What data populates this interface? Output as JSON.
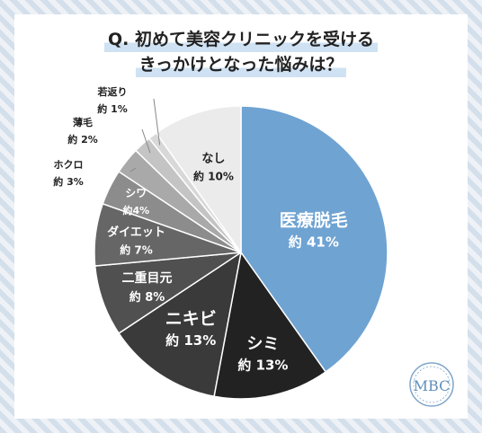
{
  "chart_data": {
    "type": "pie",
    "title": "Q. 初めて美容クリニックを受ける\nきっかけとなった悩みは？",
    "title_lines": [
      "Q. 初めて美容クリニックを受ける",
      "きっかけとなった悩みは？"
    ],
    "slices": [
      {
        "label": "医療脱毛",
        "value_label": "約 41%",
        "value": 41,
        "color": "#6fa3d2",
        "text_color": "#ffffff"
      },
      {
        "label": "シミ",
        "value_label": "約 13%",
        "value": 13,
        "color": "#222222",
        "text_color": "#ffffff"
      },
      {
        "label": "ニキビ",
        "value_label": "約 13%",
        "value": 13,
        "color": "#3a3a3a",
        "text_color": "#ffffff"
      },
      {
        "label": "二重目元",
        "value_label": "約 8%",
        "value": 8,
        "color": "#505050",
        "text_color": "#ffffff"
      },
      {
        "label": "ダイエット",
        "value_label": "約 7%",
        "value": 7,
        "color": "#666666",
        "text_color": "#ffffff"
      },
      {
        "label": "シワ",
        "value_label": "約4%",
        "value": 4,
        "color": "#8c8c8c",
        "text_color": "#ffffff"
      },
      {
        "label": "ホクロ",
        "value_label": "約 3%",
        "value": 3,
        "color": "#a9a9a9",
        "text_color": "#222222"
      },
      {
        "label": "薄毛",
        "value_label": "約 2%",
        "value": 2,
        "color": "#c4c4c4",
        "text_color": "#222222"
      },
      {
        "label": "若返り",
        "value_label": "約 1%",
        "value": 1,
        "color": "#d8d8d8",
        "text_color": "#222222"
      },
      {
        "label": "なし",
        "value_label": "約 10%",
        "value": 10,
        "color": "#ebebeb",
        "text_color": "#222222"
      }
    ]
  },
  "logo": {
    "text": "MBC"
  }
}
